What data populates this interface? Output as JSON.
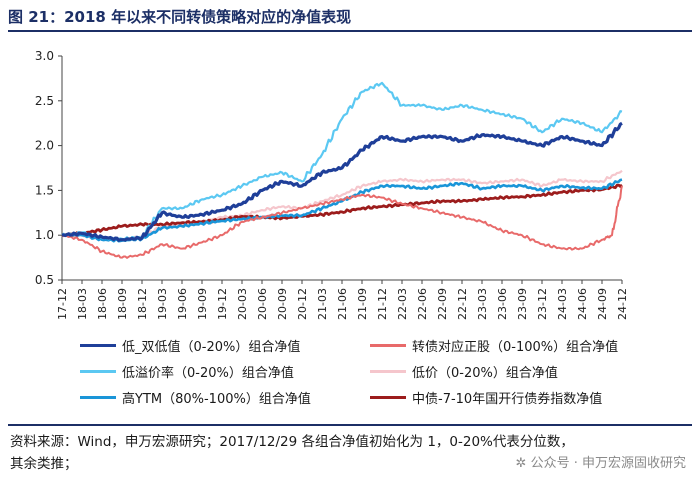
{
  "title": "图 21：2018 年以来不同转债策略对应的净值表现",
  "footnote": [
    "资料来源：Wind，申万宏源研究；2017/12/29 各组合净值初始化为 1，0-20%代表分位数，",
    "其余类推；"
  ],
  "watermark": "公众号 · 申万宏源固收研究",
  "chart_data": {
    "type": "line",
    "ylim": [
      0.5,
      3.0
    ],
    "yticks": [
      0.5,
      1.0,
      1.5,
      2.0,
      2.5,
      3.0
    ],
    "ytick_labels": [
      "0.5",
      "1.0",
      "1.5",
      "2.0",
      "2.5",
      "3.0"
    ],
    "x_ticks": [
      "17-12",
      "18-03",
      "18-06",
      "18-09",
      "18-12",
      "19-03",
      "19-06",
      "19-09",
      "19-12",
      "20-03",
      "20-06",
      "20-09",
      "20-12",
      "21-03",
      "21-06",
      "21-09",
      "21-12",
      "22-03",
      "22-06",
      "22-09",
      "22-12",
      "23-03",
      "23-06",
      "23-09",
      "23-12",
      "24-03",
      "24-06",
      "24-09",
      "24-12"
    ],
    "x_range": [
      0,
      28
    ],
    "series": [
      {
        "name": "低_双低值（0-20%）组合净值",
        "color": "#1f3f99",
        "width": 3.2,
        "x": [
          0,
          1,
          2,
          3,
          4,
          5,
          6,
          7,
          8,
          9,
          10,
          11,
          12,
          13,
          14,
          15,
          16,
          17,
          18,
          19,
          20,
          21,
          22,
          23,
          24,
          25,
          26,
          27,
          28
        ],
        "values": [
          1.0,
          1.02,
          0.98,
          0.95,
          0.97,
          1.25,
          1.2,
          1.23,
          1.28,
          1.35,
          1.5,
          1.6,
          1.55,
          1.7,
          1.75,
          1.95,
          2.1,
          2.05,
          2.1,
          2.1,
          2.05,
          2.12,
          2.1,
          2.05,
          2.0,
          2.1,
          2.05,
          2.0,
          2.25
        ]
      },
      {
        "name": "转债对应正股（0-100%）组合净值",
        "color": "#e86a6a",
        "width": 2.0,
        "x": [
          0,
          1,
          2,
          3,
          4,
          5,
          6,
          7,
          8,
          9,
          10,
          11,
          12,
          13,
          14,
          15,
          16,
          17,
          18,
          19,
          20,
          21,
          22,
          23,
          24,
          25,
          26,
          27,
          27.5,
          28
        ],
        "values": [
          1.0,
          0.95,
          0.82,
          0.75,
          0.78,
          0.9,
          0.85,
          0.92,
          1.0,
          1.15,
          1.2,
          1.25,
          1.3,
          1.35,
          1.4,
          1.45,
          1.42,
          1.35,
          1.3,
          1.25,
          1.2,
          1.15,
          1.05,
          1.0,
          0.9,
          0.85,
          0.85,
          0.95,
          1.0,
          1.55
        ]
      },
      {
        "name": "低溢价率（0-20%）组合净值",
        "color": "#5bc8f2",
        "width": 2.2,
        "x": [
          0,
          1,
          2,
          3,
          4,
          5,
          6,
          7,
          8,
          9,
          10,
          11,
          12,
          13,
          14,
          15,
          16,
          17,
          18,
          19,
          20,
          21,
          22,
          23,
          24,
          25,
          26,
          27,
          28
        ],
        "values": [
          1.0,
          1.03,
          0.97,
          0.96,
          0.98,
          1.3,
          1.3,
          1.4,
          1.45,
          1.55,
          1.65,
          1.7,
          1.6,
          1.9,
          2.3,
          2.6,
          2.7,
          2.45,
          2.45,
          2.4,
          2.45,
          2.4,
          2.35,
          2.3,
          2.15,
          2.3,
          2.25,
          2.15,
          2.38
        ]
      },
      {
        "name": "低价（0-20%）组合净值",
        "color": "#f5c6cc",
        "width": 2.2,
        "x": [
          0,
          1,
          2,
          3,
          4,
          5,
          6,
          7,
          8,
          9,
          10,
          11,
          12,
          13,
          14,
          15,
          16,
          17,
          18,
          19,
          20,
          21,
          22,
          23,
          24,
          25,
          26,
          27,
          28
        ],
        "values": [
          1.0,
          1.0,
          0.96,
          0.95,
          0.98,
          1.1,
          1.12,
          1.15,
          1.2,
          1.22,
          1.28,
          1.32,
          1.3,
          1.38,
          1.45,
          1.55,
          1.6,
          1.62,
          1.6,
          1.62,
          1.62,
          1.58,
          1.6,
          1.62,
          1.55,
          1.62,
          1.6,
          1.6,
          1.72
        ]
      },
      {
        "name": "高YTM（80%-100%）组合净值",
        "color": "#1a95d8",
        "width": 2.6,
        "x": [
          0,
          1,
          2,
          3,
          4,
          5,
          6,
          7,
          8,
          9,
          10,
          11,
          12,
          13,
          14,
          15,
          16,
          17,
          18,
          19,
          20,
          21,
          22,
          23,
          24,
          25,
          26,
          27,
          28
        ],
        "values": [
          1.0,
          1.0,
          0.95,
          0.94,
          0.96,
          1.08,
          1.1,
          1.13,
          1.16,
          1.18,
          1.2,
          1.22,
          1.22,
          1.3,
          1.38,
          1.48,
          1.55,
          1.55,
          1.52,
          1.55,
          1.58,
          1.52,
          1.55,
          1.55,
          1.5,
          1.55,
          1.53,
          1.52,
          1.62
        ]
      },
      {
        "name": "中债-7-10年国开行债券指数净值",
        "color": "#9c1c1c",
        "width": 2.8,
        "x": [
          0,
          1,
          2,
          3,
          4,
          5,
          6,
          7,
          8,
          9,
          10,
          11,
          12,
          13,
          14,
          15,
          16,
          17,
          18,
          19,
          20,
          21,
          22,
          23,
          24,
          25,
          26,
          27,
          28
        ],
        "values": [
          1.0,
          1.02,
          1.06,
          1.1,
          1.12,
          1.12,
          1.14,
          1.15,
          1.17,
          1.21,
          1.2,
          1.19,
          1.21,
          1.23,
          1.26,
          1.3,
          1.32,
          1.34,
          1.36,
          1.38,
          1.38,
          1.4,
          1.42,
          1.43,
          1.45,
          1.48,
          1.5,
          1.51,
          1.56
        ]
      }
    ]
  }
}
